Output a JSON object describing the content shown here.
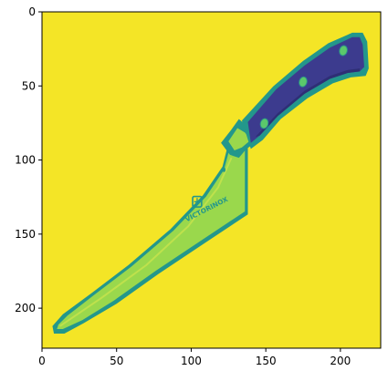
{
  "image": {
    "subject": "chef's knife",
    "colormap": "viridis",
    "background_color": "#F4E526",
    "blade_fill_color": "#9AD84C",
    "blade_outline_color": "#23978B",
    "handle_color": "#3C3B8E",
    "handle_dark_color": "#2E2F75",
    "rivet_color": "#5BC86B",
    "blade_engraving": "VICTORINOX"
  },
  "axes": {
    "x": {
      "range": [
        0,
        227
      ],
      "ticks": [
        {
          "value": 0,
          "label": "0"
        },
        {
          "value": 50,
          "label": "50"
        },
        {
          "value": 100,
          "label": "100"
        },
        {
          "value": 150,
          "label": "150"
        },
        {
          "value": 200,
          "label": "200"
        }
      ]
    },
    "y": {
      "range": [
        0,
        227
      ],
      "inverted": true,
      "ticks": [
        {
          "value": 0,
          "label": "0"
        },
        {
          "value": 50,
          "label": "50"
        },
        {
          "value": 100,
          "label": "100"
        },
        {
          "value": 150,
          "label": "150"
        },
        {
          "value": 200,
          "label": "200"
        }
      ]
    }
  }
}
